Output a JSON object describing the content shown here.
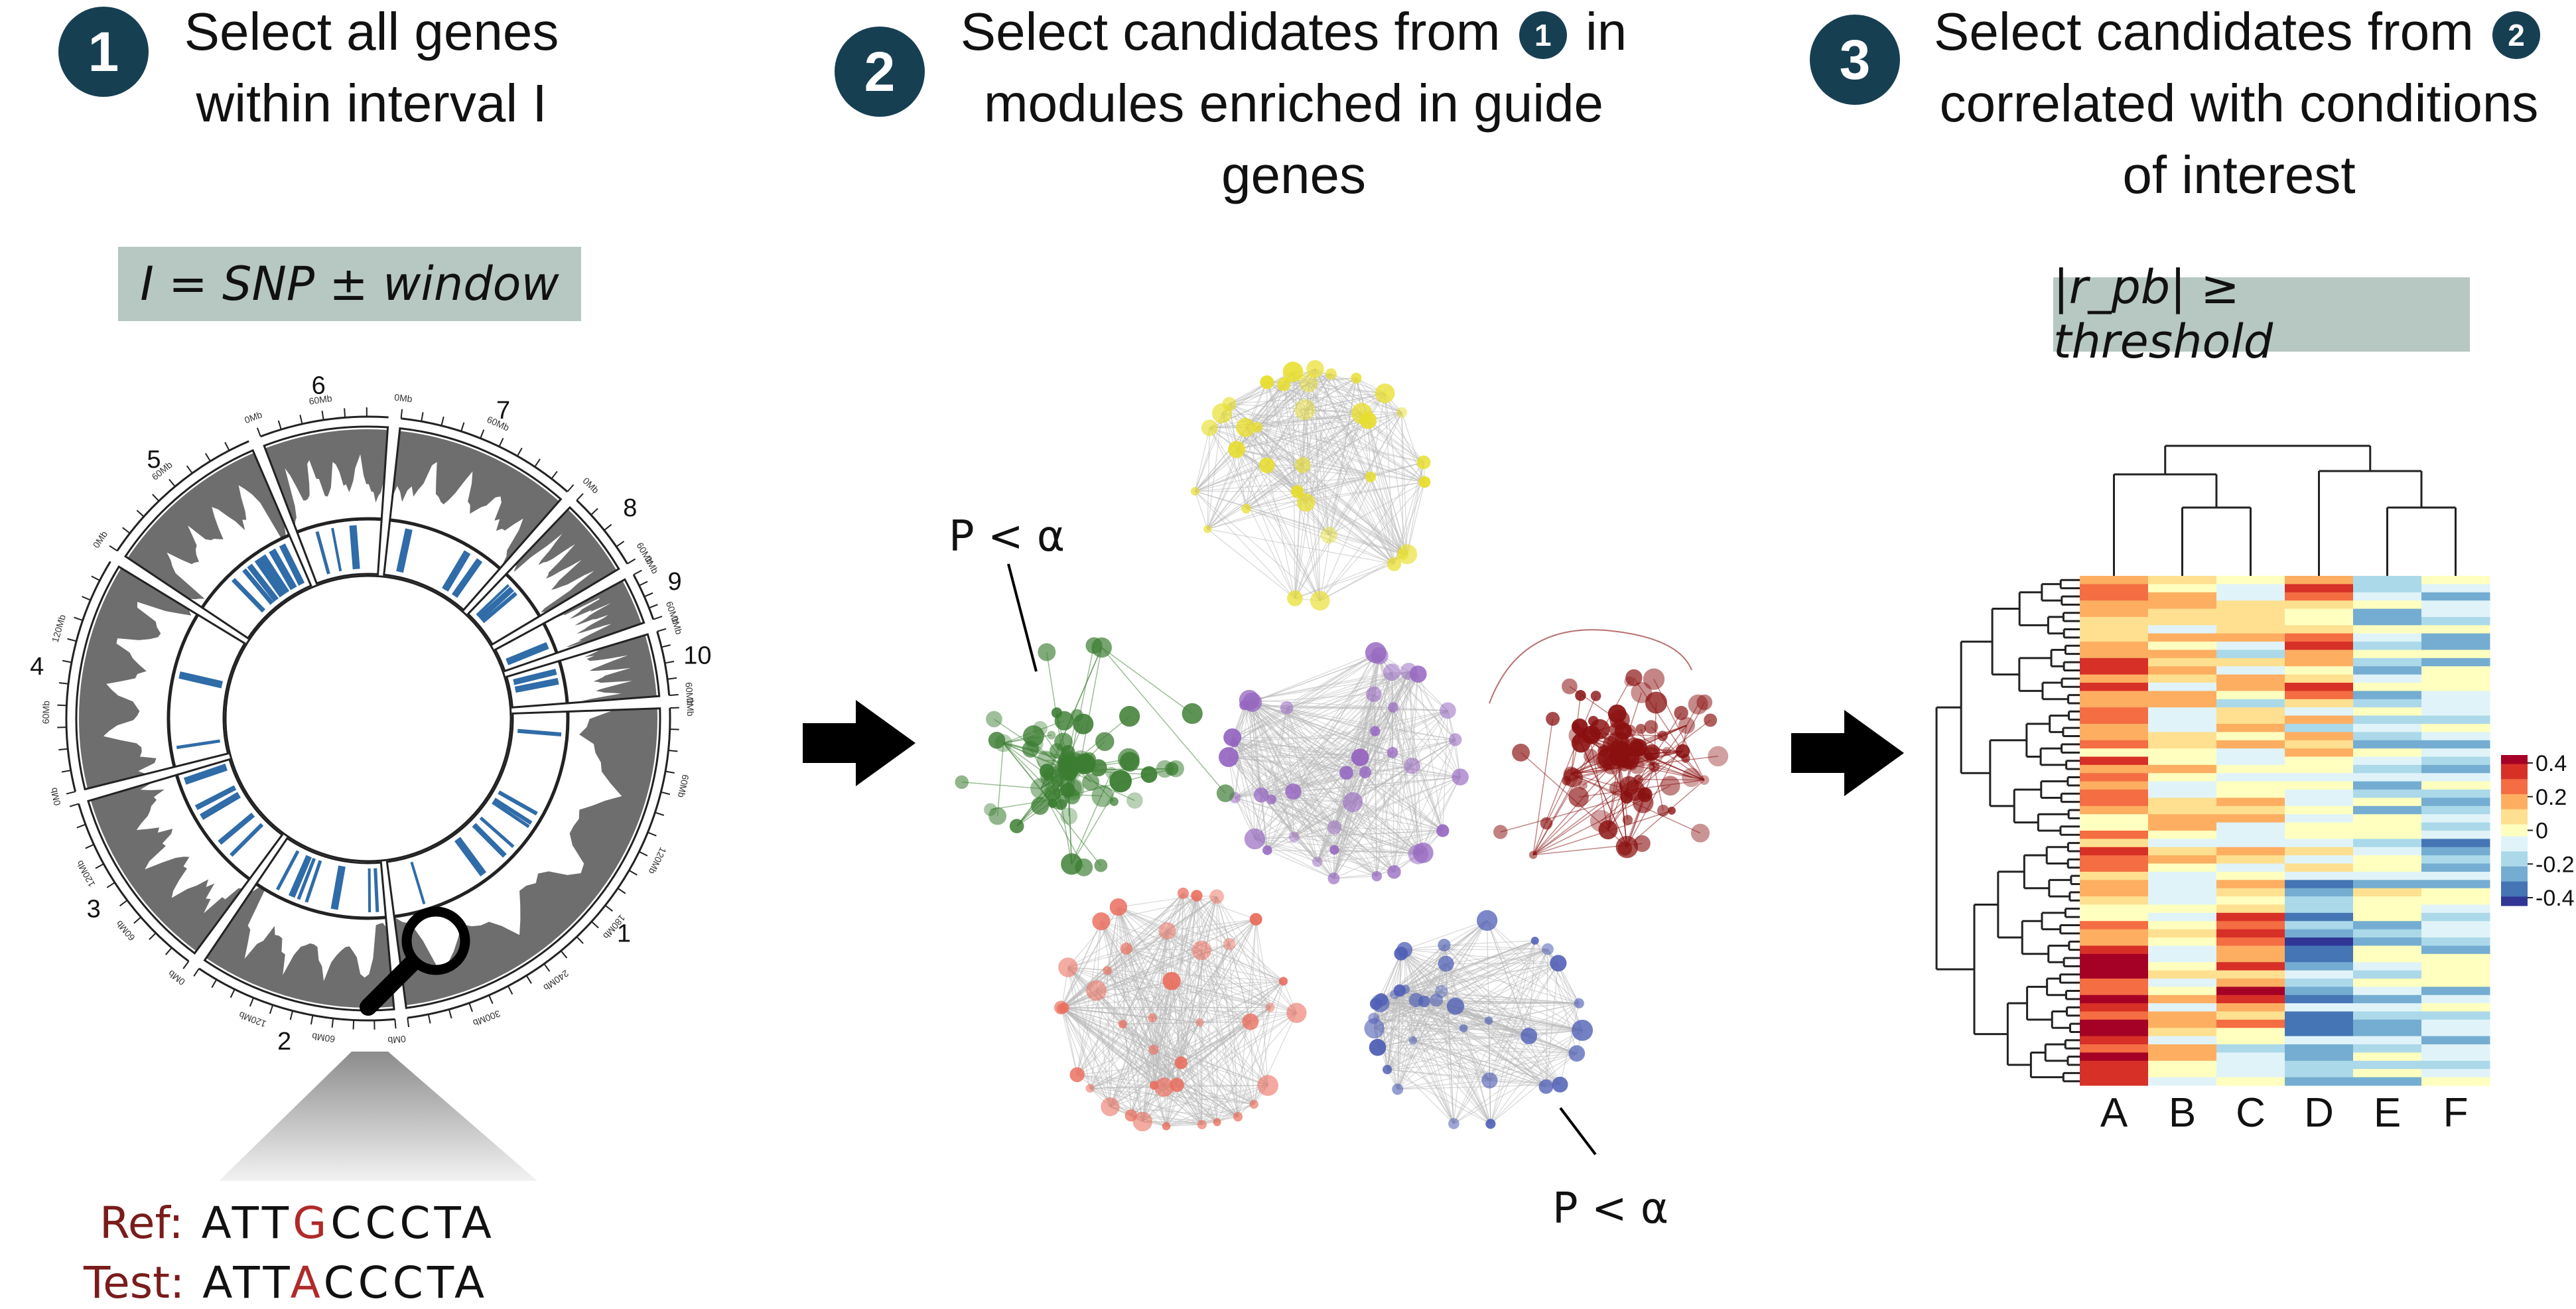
{
  "steps": [
    {
      "number": "1",
      "title_lines": [
        "Select all genes",
        "within interval I"
      ]
    },
    {
      "number": "2",
      "title_line1_pre": "Select candidates from",
      "title_line1_badge": "1",
      "title_line1_post": "in",
      "title_lines_rest": [
        "modules enriched in guide",
        "genes"
      ]
    },
    {
      "number": "3",
      "title_line1_pre": "Select candidates from",
      "title_line1_badge": "2",
      "title_lines_rest": [
        "correlated with conditions",
        "of interest"
      ]
    }
  ],
  "formula_interval": "I = SNP ± window",
  "formula_threshold": "|r_pb| ≥ threshold",
  "sequences": {
    "ref_label": "Ref:",
    "ref_before": "ATT",
    "ref_mut": "G",
    "ref_after": "CCCTA",
    "test_label": "Test:",
    "test_before": "ATT",
    "test_mut": "A",
    "test_after": "CCCTA"
  },
  "p_label": "P < α",
  "chromosomes": [
    "1",
    "2",
    "3",
    "4",
    "5",
    "6",
    "7",
    "8",
    "9",
    "10"
  ],
  "chromosome_ticks": [
    "0Mb",
    "60Mb",
    "120Mb",
    "180Mb",
    "240Mb",
    "300Mb"
  ],
  "modules": [
    {
      "color": "yellow",
      "hex": "#e8de2a"
    },
    {
      "color": "green",
      "hex": "#3c7d32"
    },
    {
      "color": "purple",
      "hex": "#9565c0"
    },
    {
      "color": "darkred",
      "hex": "#8a1010"
    },
    {
      "color": "salmon",
      "hex": "#ea6d5d"
    },
    {
      "color": "blue",
      "hex": "#4f5fb5"
    }
  ],
  "heatmap": {
    "columns": [
      "A",
      "B",
      "C",
      "D",
      "E",
      "F"
    ],
    "legend_ticks": [
      "0.4",
      "0.2",
      "0",
      "-0.2",
      "-0.4"
    ]
  },
  "colors": {
    "badge": "#173f52",
    "box": "#b7c7c2",
    "ref_red": "#b02a2a",
    "arrow": "#000000"
  }
}
